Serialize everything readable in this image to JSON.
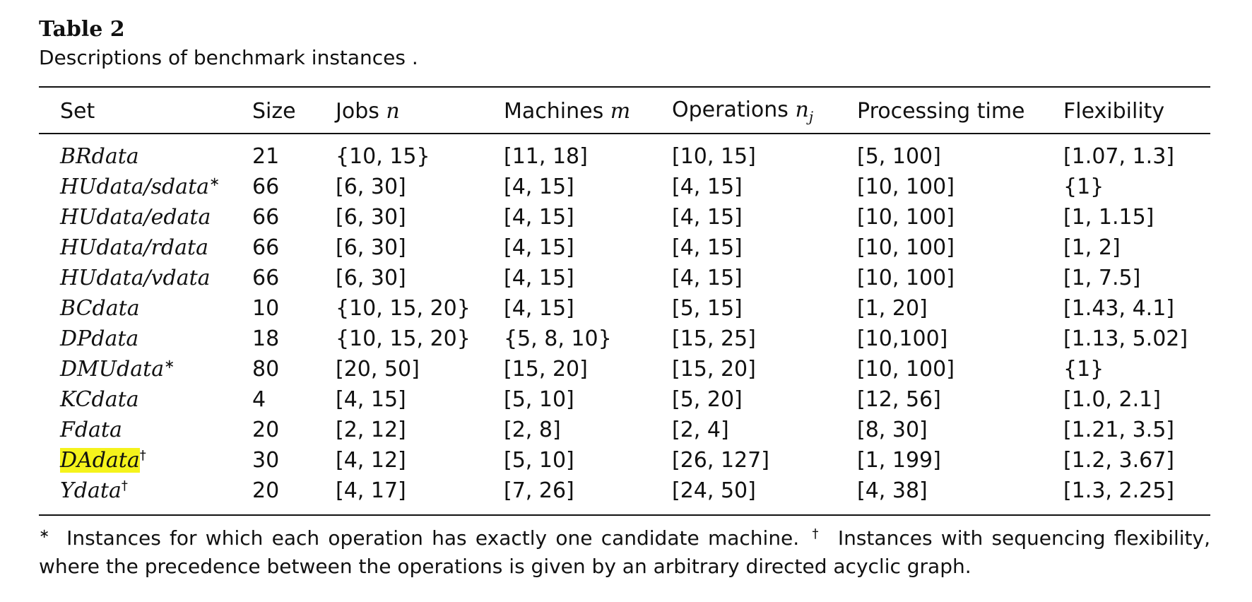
{
  "caption": {
    "title": "Table 2",
    "description": "Descriptions of benchmark instances ."
  },
  "table": {
    "headers": {
      "set": "Set",
      "size": "Size",
      "jobs_label": "Jobs",
      "jobs_symbol": "n",
      "machines_label": "Machines",
      "machines_symbol": "m",
      "operations_label": "Operations",
      "operations_symbol": "n",
      "operations_subscript": "j",
      "processing": "Processing time",
      "flexibility": "Flexibility"
    },
    "rows": [
      {
        "set": "BRdata",
        "mark": "",
        "size": "21",
        "jobs": "{10, 15}",
        "machines": "[11, 18]",
        "operations": "[10, 15]",
        "processing": "[5, 100]",
        "flexibility": "[1.07, 1.3]"
      },
      {
        "set": "HUdata/sdata",
        "mark": "∗",
        "size": "66",
        "jobs": "[6, 30]",
        "machines": "[4, 15]",
        "operations": "[4, 15]",
        "processing": "[10, 100]",
        "flexibility": "{1}"
      },
      {
        "set": "HUdata/edata",
        "mark": "",
        "size": "66",
        "jobs": "[6, 30]",
        "machines": "[4, 15]",
        "operations": "[4, 15]",
        "processing": "[10, 100]",
        "flexibility": "[1, 1.15]"
      },
      {
        "set": "HUdata/rdata",
        "mark": "",
        "size": "66",
        "jobs": "[6, 30]",
        "machines": "[4, 15]",
        "operations": "[4, 15]",
        "processing": "[10, 100]",
        "flexibility": "[1, 2]"
      },
      {
        "set": "HUdata/vdata",
        "mark": "",
        "size": "66",
        "jobs": "[6, 30]",
        "machines": "[4, 15]",
        "operations": "[4, 15]",
        "processing": "[10, 100]",
        "flexibility": "[1, 7.5]"
      },
      {
        "set": "BCdata",
        "mark": "",
        "size": "10",
        "jobs": "{10, 15, 20}",
        "machines": "[4, 15]",
        "operations": "[5, 15]",
        "processing": "[1, 20]",
        "flexibility": "[1.43, 4.1]"
      },
      {
        "set": "DPdata",
        "mark": "",
        "size": "18",
        "jobs": "{10, 15, 20}",
        "machines": "{5, 8, 10}",
        "operations": "[15, 25]",
        "processing": "[10,100]",
        "flexibility": "[1.13, 5.02]"
      },
      {
        "set": "DMUdata",
        "mark": "∗",
        "size": "80",
        "jobs": "[20, 50]",
        "machines": "[15, 20]",
        "operations": "[15, 20]",
        "processing": "[10, 100]",
        "flexibility": "{1}"
      },
      {
        "set": "KCdata",
        "mark": "",
        "size": "4",
        "jobs": "[4, 15]",
        "machines": "[5, 10]",
        "operations": "[5, 20]",
        "processing": "[12, 56]",
        "flexibility": "[1.0, 2.1]"
      },
      {
        "set": "Fdata",
        "mark": "",
        "size": "20",
        "jobs": "[2, 12]",
        "machines": "[2, 8]",
        "operations": "[2, 4]",
        "processing": "[8, 30]",
        "flexibility": "[1.21, 3.5]"
      },
      {
        "set": "DAdata",
        "mark": "†",
        "highlight": true,
        "size": "30",
        "jobs": "[4, 12]",
        "machines": "[5, 10]",
        "operations": "[26, 127]",
        "processing": "[1, 199]",
        "flexibility": "[1.2, 3.67]"
      },
      {
        "set": "Ydata",
        "mark": "†",
        "size": "20",
        "jobs": "[4, 17]",
        "machines": "[7, 26]",
        "operations": "[24, 50]",
        "processing": "[4, 38]",
        "flexibility": "[1.3, 2.25]"
      }
    ]
  },
  "footnotes": {
    "star_mark": "∗",
    "star_text": "Instances for which each operation has exactly one candidate machine.",
    "dagger_mark": "†",
    "dagger_text": "Instances with sequencing flexibility, where the precedence between the operations is given by an arbitrary directed acyclic graph."
  },
  "colors": {
    "highlight": "#f5f31b",
    "text": "#111111"
  }
}
